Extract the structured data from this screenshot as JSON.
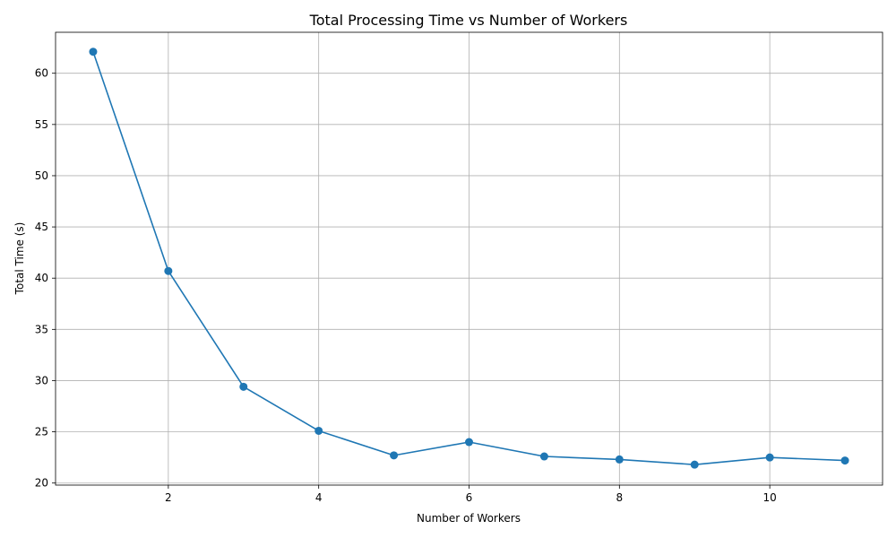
{
  "chart_data": {
    "type": "line",
    "title": "Total Processing Time vs Number of Workers",
    "xlabel": "Number of Workers",
    "ylabel": "Total Time (s)",
    "xlim": [
      0.5,
      11.5
    ],
    "ylim": [
      19.8,
      64.0
    ],
    "x_ticks": [
      2,
      4,
      6,
      8,
      10
    ],
    "y_ticks": [
      20,
      25,
      30,
      35,
      40,
      45,
      50,
      55,
      60
    ],
    "grid": true,
    "markers": "circle",
    "series": [
      {
        "color": "#1f77b4",
        "x": [
          1,
          2,
          3,
          4,
          5,
          6,
          7,
          8,
          9,
          10,
          11
        ],
        "y": [
          62.1,
          40.7,
          29.4,
          25.1,
          22.7,
          24.0,
          22.6,
          22.3,
          21.8,
          22.5,
          22.2
        ]
      }
    ]
  }
}
